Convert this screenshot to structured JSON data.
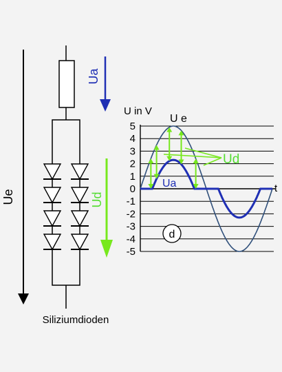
{
  "labels": {
    "ue_left": "Ue",
    "ua_top": "Ua",
    "ud_mid": "Ud",
    "diodes_caption": "Siliziumdioden",
    "y_axis_title": "U in V",
    "x_axis_title": "t",
    "ue_curve": "U e",
    "ua_curve": "Ua",
    "ud_callout": "Ud",
    "panel_badge": "d"
  },
  "colors": {
    "input_wave": "#2f4f7a",
    "output_wave": "#1f2fb4",
    "ud_arrows": "#77e81d",
    "ua_arrow": "#1f2fb4",
    "ud_label": "#55dd33",
    "background": "#f3f3f3",
    "lines": "#000000"
  },
  "chart_data": {
    "type": "line",
    "xlabel": "t",
    "ylabel": "U in V",
    "ylim": [
      -5,
      5
    ],
    "yticks": [
      "5",
      "4",
      "3",
      "2",
      "1",
      "0",
      "-1",
      "-2",
      "-3",
      "-4",
      "-5"
    ],
    "grid": true,
    "series": [
      {
        "name": "U e",
        "peak": 5,
        "shape": "sine, one full period"
      },
      {
        "name": "Ua",
        "peak": 2.3,
        "shape": "sine minus diode threshold, zero while |Ue| < 2.7 V"
      }
    ]
  }
}
